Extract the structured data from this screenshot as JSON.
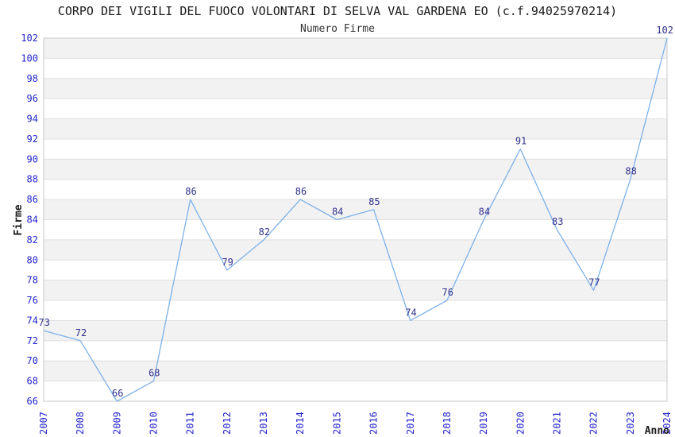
{
  "title": "CORPO DEI VIGILI DEL FUOCO VOLONTARI DI SELVA VAL GARDENA EO (c.f.94025970214)",
  "subtitle": "Numero Firme",
  "chart_data": {
    "type": "line",
    "x": [
      2007,
      2008,
      2009,
      2010,
      2011,
      2012,
      2013,
      2014,
      2015,
      2016,
      2017,
      2018,
      2019,
      2020,
      2021,
      2022,
      2023,
      2024
    ],
    "series": [
      {
        "name": "Numero Firme",
        "values": [
          73,
          72,
          66,
          68,
          86,
          79,
          82,
          86,
          84,
          85,
          74,
          76,
          84,
          91,
          83,
          77,
          88,
          102
        ]
      }
    ],
    "title": "CORPO DEI VIGILI DEL FUOCO VOLONTARI DI SELVA VAL GARDENA EO (c.f.94025970214)",
    "subtitle": "Numero Firme",
    "xlabel": "Anno",
    "ylabel": "Firme",
    "ylim": [
      66,
      102
    ],
    "ytick_step": 2,
    "grid": "alternating horizontal bands every 2 units, light gridline at each tick",
    "legend": "none",
    "data_labels": true,
    "x_tick_rotation": 90
  },
  "colors": {
    "line": "#7db1e8",
    "axis_tick_label": "#2424cc",
    "data_label": "#32328c",
    "band_gray": "#f2f2f2",
    "band_white": "#ffffff",
    "gridline": "#e0e0e0",
    "plot_border": "#c9c9c9",
    "title_text": "#1a1a1a",
    "subtitle_text": "#333333",
    "axis_name_text": "#1a1a1a"
  }
}
